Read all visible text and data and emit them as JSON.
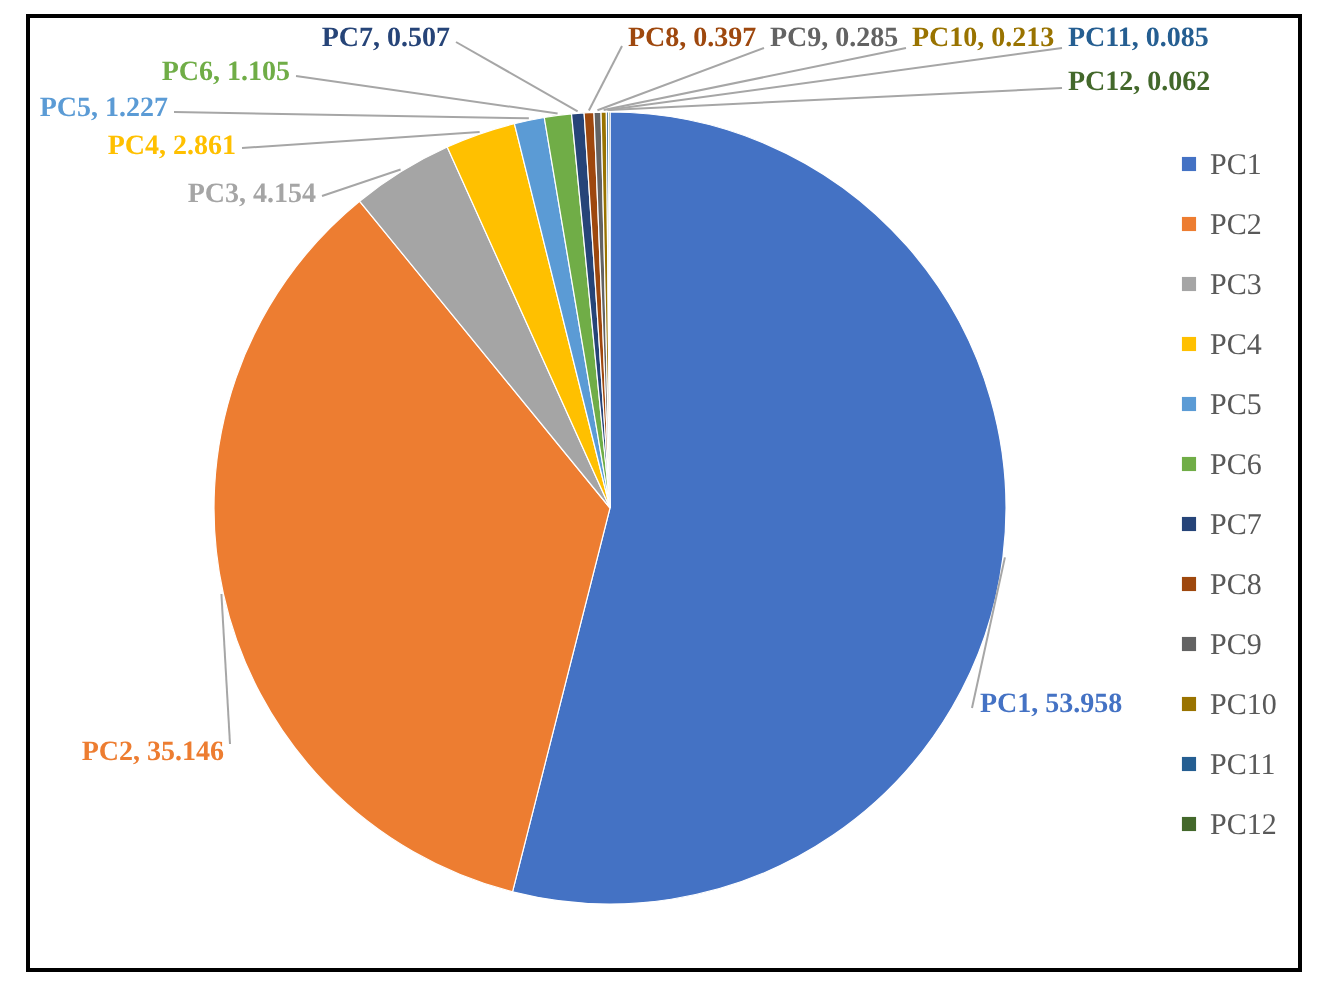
{
  "chart_data": {
    "type": "pie",
    "categories": [
      "PC1",
      "PC2",
      "PC3",
      "PC4",
      "PC5",
      "PC6",
      "PC7",
      "PC8",
      "PC9",
      "PC10",
      "PC11",
      "PC12"
    ],
    "values": [
      53.958,
      35.146,
      4.154,
      2.861,
      1.227,
      1.105,
      0.507,
      0.397,
      0.285,
      0.213,
      0.085,
      0.062
    ],
    "value_labels": [
      "PC1, 53.958",
      "PC2, 35.146",
      "PC3, 4.154",
      "PC4, 2.861",
      "PC5, 1.227",
      "PC6, 1.105",
      "PC7, 0.507",
      "PC8, 0.397",
      "PC9, 0.285",
      "PC10, 0.213",
      "PC11, 0.085",
      "PC12, 0.062"
    ],
    "colors": [
      "#4472c4",
      "#ed7d31",
      "#a5a5a5",
      "#ffc000",
      "#5b9bd5",
      "#70ad47",
      "#264478",
      "#9e480e",
      "#636363",
      "#997300",
      "#255e91",
      "#43682b"
    ],
    "legend": "right"
  }
}
